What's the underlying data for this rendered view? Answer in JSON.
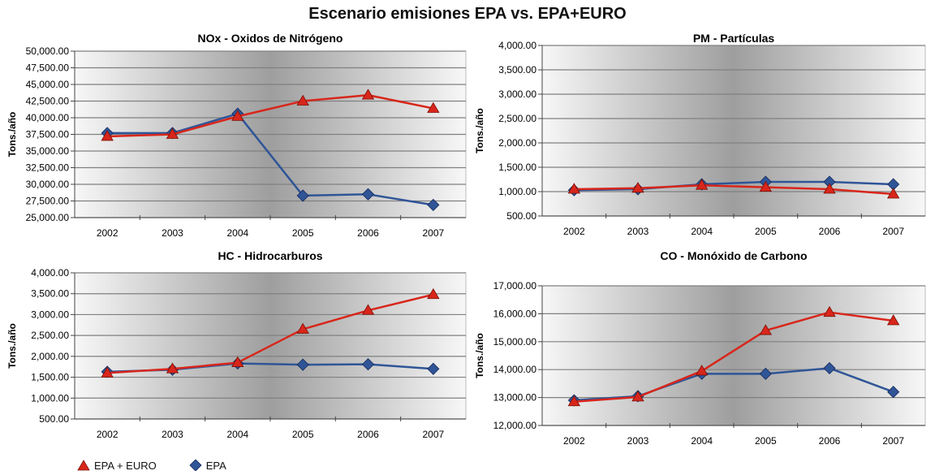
{
  "title": "Escenario emisiones EPA vs. EPA+EURO",
  "colors": {
    "epa_euro": "#d8261b",
    "epa": "#2f5597",
    "grid": "#888888"
  },
  "legend": {
    "epa_euro": "EPA + EURO",
    "epa": "EPA",
    "epa_euro_icon": "red-triangle-marker",
    "epa_icon": "blue-diamond-marker"
  },
  "chart_data": [
    {
      "type": "line",
      "title": "NOx - Oxidos de Nitrógeno",
      "ylabel": "Tons./año",
      "xlabel": "",
      "categories": [
        "2002",
        "2003",
        "2004",
        "2005",
        "2006",
        "2007"
      ],
      "ylim": [
        25000,
        50000
      ],
      "yticks": [
        25000,
        27500,
        30000,
        32500,
        35000,
        37500,
        40000,
        42500,
        45000,
        47500,
        50000
      ],
      "ytick_labels": [
        "25,000.00",
        "27,500.00",
        "30,000.00",
        "32,500.00",
        "35,000.00",
        "37,500.00",
        "40,000.00",
        "42,500.00",
        "45,000.00",
        "47,500.00",
        "50,000.00"
      ],
      "series": [
        {
          "name": "EPA + EURO",
          "marker": "triangle",
          "values": [
            37200,
            37500,
            40200,
            42500,
            43400,
            41400
          ]
        },
        {
          "name": "EPA",
          "marker": "diamond",
          "values": [
            37700,
            37700,
            40600,
            28300,
            28500,
            26900
          ]
        }
      ]
    },
    {
      "type": "line",
      "title": "PM - Partículas",
      "ylabel": "Tons./año",
      "xlabel": "",
      "categories": [
        "2002",
        "2003",
        "2004",
        "2005",
        "2006",
        "2007"
      ],
      "ylim": [
        500,
        4000
      ],
      "yticks": [
        500,
        1000,
        1500,
        2000,
        2500,
        3000,
        3500,
        4000
      ],
      "ytick_labels": [
        "500.00",
        "1,000.00",
        "1,500.00",
        "2,000.00",
        "2,500.00",
        "3,000.00",
        "3,500.00",
        "4,000.00"
      ],
      "series": [
        {
          "name": "EPA + EURO",
          "marker": "triangle",
          "values": [
            1050,
            1070,
            1130,
            1090,
            1050,
            950
          ]
        },
        {
          "name": "EPA",
          "marker": "diamond",
          "values": [
            1030,
            1050,
            1150,
            1200,
            1200,
            1150
          ]
        }
      ]
    },
    {
      "type": "line",
      "title": "HC - Hidrocarburos",
      "ylabel": "Tons./año",
      "xlabel": "",
      "categories": [
        "2002",
        "2003",
        "2004",
        "2005",
        "2006",
        "2007"
      ],
      "ylim": [
        500,
        4000
      ],
      "yticks": [
        500,
        1000,
        1500,
        2000,
        2500,
        3000,
        3500,
        4000
      ],
      "ytick_labels": [
        "500.00",
        "1,000.00",
        "1,500.00",
        "2,000.00",
        "2,500.00",
        "3,000.00",
        "3,500.00",
        "4,000.00"
      ],
      "series": [
        {
          "name": "EPA + EURO",
          "marker": "triangle",
          "values": [
            1600,
            1700,
            1850,
            2650,
            3100,
            3480
          ]
        },
        {
          "name": "EPA",
          "marker": "diamond",
          "values": [
            1630,
            1680,
            1830,
            1800,
            1810,
            1700
          ]
        }
      ]
    },
    {
      "type": "line",
      "title": "CO - Monóxido de Carbono",
      "ylabel": "Tons./año",
      "xlabel": "",
      "categories": [
        "2002",
        "2003",
        "2004",
        "2005",
        "2006",
        "2007"
      ],
      "ylim": [
        12000,
        17000
      ],
      "yticks": [
        12000,
        13000,
        14000,
        15000,
        16000,
        17000
      ],
      "ytick_labels": [
        "12,000.00",
        "13,000.00",
        "14,000.00",
        "15,000.00",
        "16,000.00",
        "17,000.00"
      ],
      "series": [
        {
          "name": "EPA + EURO",
          "marker": "triangle",
          "values": [
            12850,
            13020,
            13950,
            15400,
            16050,
            15750
          ]
        },
        {
          "name": "EPA",
          "marker": "diamond",
          "values": [
            12900,
            13050,
            13850,
            13850,
            14050,
            13200
          ]
        }
      ]
    }
  ]
}
